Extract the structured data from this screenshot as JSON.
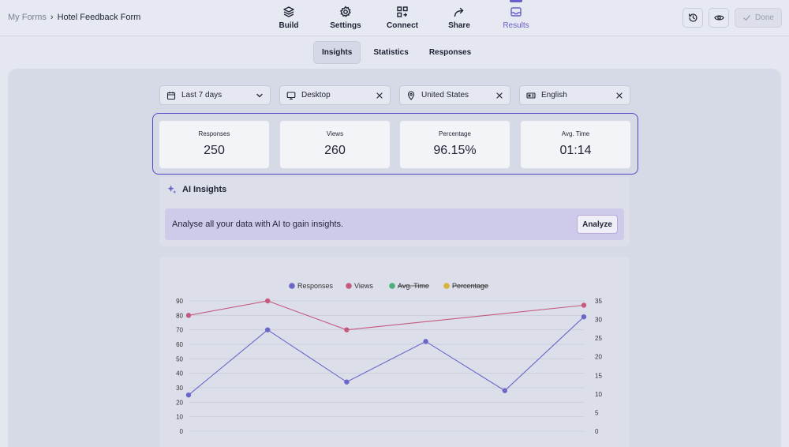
{
  "breadcrumb": {
    "parent": "My Forms",
    "separator": "›",
    "current": "Hotel Feedback Form"
  },
  "nav": [
    {
      "label": "Build",
      "icon": "layers-icon",
      "active": false
    },
    {
      "label": "Settings",
      "icon": "gear-icon",
      "active": false
    },
    {
      "label": "Connect",
      "icon": "grid-plus-icon",
      "active": false
    },
    {
      "label": "Share",
      "icon": "share-arrow-icon",
      "active": false
    },
    {
      "label": "Results",
      "icon": "inbox-icon",
      "active": true
    }
  ],
  "toolbar": {
    "history_icon": "history-icon",
    "preview_icon": "eye-icon",
    "done_label": "Done"
  },
  "subtabs": [
    {
      "label": "Insights",
      "active": true
    },
    {
      "label": "Statistics",
      "active": false
    },
    {
      "label": "Responses",
      "active": false
    }
  ],
  "filters": {
    "date": "Last 7 days",
    "device": "Desktop",
    "country": "United States",
    "language": "English"
  },
  "stats": [
    {
      "label": "Responses",
      "value": "250"
    },
    {
      "label": "Views",
      "value": "260"
    },
    {
      "label": "Percentage",
      "value": "96.15%"
    },
    {
      "label": "Avg. Time",
      "value": "01:14"
    }
  ],
  "ai": {
    "title": "AI Insights",
    "message": "Analyse all your data with AI to gain insights.",
    "button": "Analyze"
  },
  "colors": {
    "accent": "#6a5fc9",
    "responses": "#6a67c9",
    "views": "#c45a7e",
    "avg_time": "#4caf7a",
    "percentage": "#d8b43a"
  },
  "chart_data": {
    "type": "line",
    "legend_position": "top-center",
    "grid": true,
    "series": [
      {
        "name": "Responses",
        "color": "#6a67c9",
        "values": [
          25,
          70,
          34,
          62,
          28,
          79
        ],
        "axis": "left",
        "visible": true
      },
      {
        "name": "Views",
        "color": "#c45a7e",
        "values": [
          80,
          90,
          70,
          null,
          null,
          87
        ],
        "axis": "left",
        "visible": true
      },
      {
        "name": "Avg. Time",
        "color": "#4caf7a",
        "values": [],
        "axis": "right",
        "visible": false
      },
      {
        "name": "Percentage",
        "color": "#d8b43a",
        "values": [],
        "axis": "right",
        "visible": false
      }
    ],
    "y_left": {
      "ticks": [
        "0",
        "10",
        "20",
        "30",
        "40",
        "50",
        "60",
        "70",
        "80",
        "90"
      ],
      "ylim": [
        0,
        90
      ]
    },
    "y_right": {
      "ticks": [
        "0",
        "5",
        "10",
        "15",
        "20",
        "25",
        "30",
        "35"
      ],
      "ylim": [
        0,
        35
      ]
    }
  }
}
